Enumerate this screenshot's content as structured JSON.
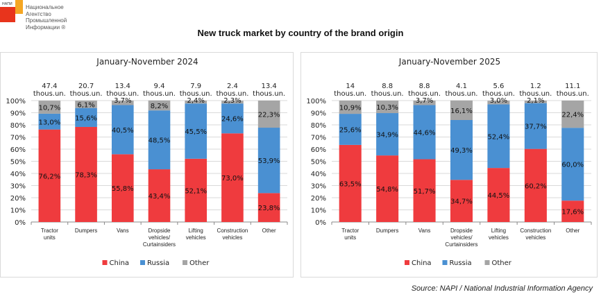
{
  "logo": {
    "abbr": "НАПИ",
    "name_lines": [
      "Национальное",
      "Агентство",
      "Промышленной",
      "Информации ®"
    ]
  },
  "title": "New truck market by country of the brand origin",
  "source": "Source: NAPI / National Industrial Information Agency",
  "colors": {
    "China": "#ef3b3e",
    "Russia": "#4a90d2",
    "Other": "#a5a5a5"
  },
  "chart_data": [
    {
      "type": "bar",
      "stacked": true,
      "title": "January-November 2024",
      "categories": [
        "Tractor units",
        "Dumpers",
        "Vans",
        "Dropside vehicles/ Curtainsiders",
        "Lifting vehicles",
        "Construction vehicles",
        "Other"
      ],
      "category_lines": [
        [
          "Tractor",
          "units"
        ],
        [
          "Dumpers"
        ],
        [
          "Vans"
        ],
        [
          "Dropside",
          "vehicles/",
          "Curtainsiders"
        ],
        [
          "Lifting",
          "vehicles"
        ],
        [
          "Construction",
          "vehicles"
        ],
        [
          "Other"
        ]
      ],
      "totals": [
        "47.4",
        "20.7",
        "13.4",
        "9.4",
        "7.9",
        "2.4",
        "13.4"
      ],
      "total_unit": "thous.un.",
      "series": [
        {
          "name": "China",
          "values": [
            76.2,
            78.3,
            55.8,
            43.4,
            52.1,
            73.0,
            23.8
          ],
          "labels": [
            "76,2%",
            "78,3%",
            "55,8%",
            "43,4%",
            "52,1%",
            "73,0%",
            "23,8%"
          ]
        },
        {
          "name": "Russia",
          "values": [
            13.0,
            15.6,
            40.5,
            48.5,
            45.5,
            24.6,
            53.9
          ],
          "labels": [
            "13,0%",
            "15,6%",
            "40,5%",
            "48,5%",
            "45,5%",
            "24,6%",
            "53,9%"
          ]
        },
        {
          "name": "Other",
          "values": [
            10.7,
            6.1,
            3.7,
            8.2,
            2.4,
            2.3,
            22.3
          ],
          "labels": [
            "10,7%",
            "6,1%",
            "3,7%",
            "8,2%",
            "2,4%",
            "2,3%",
            "22,3%"
          ]
        }
      ],
      "yticks": [
        "0%",
        "10%",
        "20%",
        "30%",
        "40%",
        "50%",
        "60%",
        "70%",
        "80%",
        "90%",
        "100%"
      ],
      "ylim": [
        0,
        100
      ],
      "grid": true,
      "legend": [
        "China",
        "Russia",
        "Other"
      ],
      "legend_position": "bottom"
    },
    {
      "type": "bar",
      "stacked": true,
      "title": "January-November 2025",
      "categories": [
        "Tractor units",
        "Dumpers",
        "Vans",
        "Dropside vehicles/ Curtainsiders",
        "Lifting vehicles",
        "Construction vehicles",
        "Other"
      ],
      "category_lines": [
        [
          "Tractor",
          "units"
        ],
        [
          "Dumpers"
        ],
        [
          "Vans"
        ],
        [
          "Dropside",
          "vehicles/",
          "Curtainsiders"
        ],
        [
          "Lifting",
          "vehicles"
        ],
        [
          "Construction",
          "vehicles"
        ],
        [
          "Other"
        ]
      ],
      "totals": [
        "14",
        "8.8",
        "8.8",
        "4.1",
        "5.6",
        "1.2",
        "11.1"
      ],
      "total_unit": "thous.un.",
      "series": [
        {
          "name": "China",
          "values": [
            63.5,
            54.8,
            51.7,
            34.7,
            44.5,
            60.2,
            17.6
          ],
          "labels": [
            "63,5%",
            "54,8%",
            "51,7%",
            "34,7%",
            "44,5%",
            "60,2%",
            "17,6%"
          ]
        },
        {
          "name": "Russia",
          "values": [
            25.6,
            34.9,
            44.6,
            49.3,
            52.4,
            37.7,
            60.0
          ],
          "labels": [
            "25,6%",
            "34,9%",
            "44,6%",
            "49,3%",
            "52,4%",
            "37,7%",
            "60,0%"
          ]
        },
        {
          "name": "Other",
          "values": [
            10.9,
            10.3,
            3.7,
            16.1,
            3.0,
            2.1,
            22.4
          ],
          "labels": [
            "10,9%",
            "10,3%",
            "3,7%",
            "16,1%",
            "3,0%",
            "2,1%",
            "22,4%"
          ]
        }
      ],
      "yticks": [
        "0%",
        "10%",
        "20%",
        "30%",
        "40%",
        "50%",
        "60%",
        "70%",
        "80%",
        "90%",
        "100%"
      ],
      "ylim": [
        0,
        100
      ],
      "grid": true,
      "legend": [
        "China",
        "Russia",
        "Other"
      ],
      "legend_position": "bottom"
    }
  ]
}
